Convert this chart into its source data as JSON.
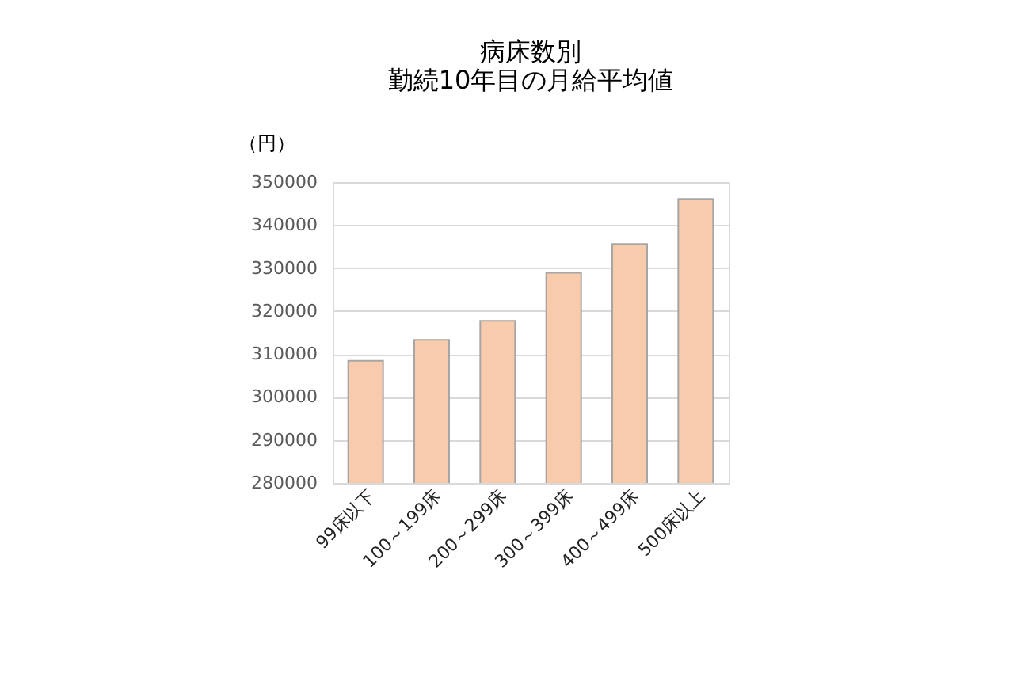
{
  "chart_data": {
    "type": "bar",
    "title": [
      "病床数別",
      "勤続10年目の月給平均値"
    ],
    "ylabel": "（円）",
    "categories": [
      "99床以下",
      "100～199床",
      "200～299床",
      "300～399床",
      "400～499床",
      "500床以上"
    ],
    "values": [
      308400,
      313300,
      317700,
      328900,
      335600,
      346100
    ],
    "color": "#f8cbad",
    "ylim": [
      280000,
      350000
    ],
    "yticks": [
      280000,
      290000,
      300000,
      310000,
      320000,
      330000,
      340000,
      350000
    ],
    "grid": "y"
  }
}
